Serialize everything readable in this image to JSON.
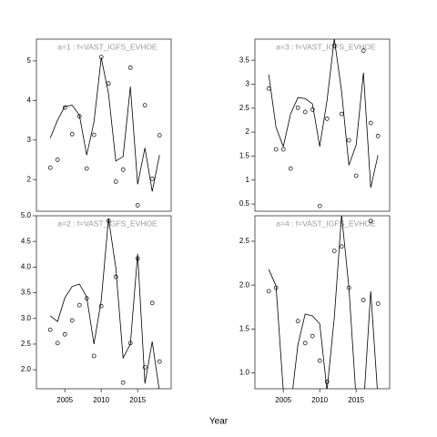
{
  "xlabel": "Year",
  "chart_data": [
    {
      "type": "line",
      "title": "a=1  :  f=VAST_IGFS_EVHOE",
      "x": [
        2003,
        2004,
        2005,
        2006,
        2007,
        2008,
        2009,
        2010,
        2011,
        2012,
        2013,
        2014,
        2015,
        2016,
        2017,
        2018
      ],
      "points": [
        2.3,
        2.5,
        3.82,
        3.15,
        3.6,
        2.28,
        3.13,
        5.1,
        4.43,
        1.95,
        2.25,
        4.83,
        1.35,
        3.88,
        2.02,
        3.12
      ],
      "line": [
        3.05,
        3.5,
        3.85,
        3.88,
        3.63,
        2.62,
        3.45,
        5.08,
        4.17,
        2.47,
        2.58,
        4.35,
        1.88,
        2.8,
        1.7,
        2.62
      ],
      "xlim": [
        2001.1,
        2019.6
      ],
      "ylim": [
        1.2,
        5.55
      ],
      "yticks": [
        2,
        3,
        4,
        5
      ]
    },
    {
      "type": "line",
      "title": "a=3  :  f=VAST_IGFS_EVHOE",
      "x": [
        2003,
        2004,
        2005,
        2006,
        2007,
        2008,
        2009,
        2010,
        2011,
        2012,
        2013,
        2014,
        2015,
        2016,
        2017,
        2018
      ],
      "points": [
        2.91,
        1.64,
        1.64,
        1.24,
        2.51,
        2.42,
        2.47,
        0.46,
        2.28,
        3.8,
        2.38,
        1.83,
        1.09,
        3.7,
        2.19,
        1.92
      ],
      "line": [
        3.2,
        2.1,
        1.7,
        2.38,
        2.72,
        2.7,
        2.59,
        1.7,
        2.66,
        3.95,
        2.85,
        1.31,
        1.73,
        3.24,
        0.84,
        1.52
      ],
      "xlim": [
        2001.1,
        2019.6
      ],
      "ylim": [
        0.35,
        3.94
      ],
      "yticks": [
        0.5,
        1,
        1.5,
        2,
        2.5,
        3,
        3.5
      ]
    },
    {
      "type": "line",
      "title": "a=2  :  f=VAST_IGFS_EVHOE",
      "x": [
        2003,
        2004,
        2005,
        2006,
        2007,
        2008,
        2009,
        2010,
        2011,
        2012,
        2013,
        2014,
        2015,
        2016,
        2017,
        2018
      ],
      "points": [
        2.78,
        2.52,
        2.69,
        2.96,
        3.26,
        3.39,
        2.27,
        3.24,
        4.9,
        3.81,
        1.75,
        2.52,
        4.17,
        2.05,
        3.3,
        2.16
      ],
      "line": [
        3.05,
        2.94,
        3.4,
        3.62,
        3.67,
        3.42,
        2.5,
        3.35,
        4.95,
        3.99,
        2.23,
        2.5,
        4.26,
        1.73,
        2.55,
        1.57
      ],
      "xlim": [
        2001.1,
        2019.6
      ],
      "ylim": [
        1.63,
        5.0
      ],
      "yticks": [
        {
          "value": 2,
          "label": "2.0"
        },
        2.5,
        {
          "value": 3,
          "label": "3.0"
        },
        3.5,
        {
          "value": 4,
          "label": "4.0"
        },
        4.5,
        {
          "value": 5,
          "label": "5.0"
        }
      ],
      "xticks": [
        2005,
        2010,
        2015
      ]
    },
    {
      "type": "line",
      "title": "a=4  :  f=VAST_IGFS_EVHOE",
      "x": [
        2003,
        2004,
        2005,
        2006,
        2007,
        2008,
        2009,
        2010,
        2011,
        2012,
        2013,
        2014,
        2015,
        2016,
        2017,
        2018
      ],
      "points": [
        1.93,
        1.97,
        null,
        null,
        1.59,
        1.34,
        1.42,
        1.14,
        0.9,
        2.39,
        2.44,
        1.97,
        null,
        1.83,
        2.73,
        1.79
      ],
      "line": [
        2.18,
        1.99,
        0.79,
        0.6,
        1.32,
        1.67,
        1.65,
        1.56,
        0.8,
        1.63,
        2.8,
        1.98,
        0.7,
        0.6,
        1.93,
        0.7
      ],
      "xlim": [
        2001.1,
        2019.6
      ],
      "ylim": [
        0.82,
        2.79
      ],
      "yticks": [
        {
          "value": 1,
          "label": "1.0"
        },
        1.5,
        {
          "value": 2,
          "label": "2.0"
        },
        2.5
      ],
      "xticks": [
        2005,
        2010,
        2015
      ]
    }
  ]
}
